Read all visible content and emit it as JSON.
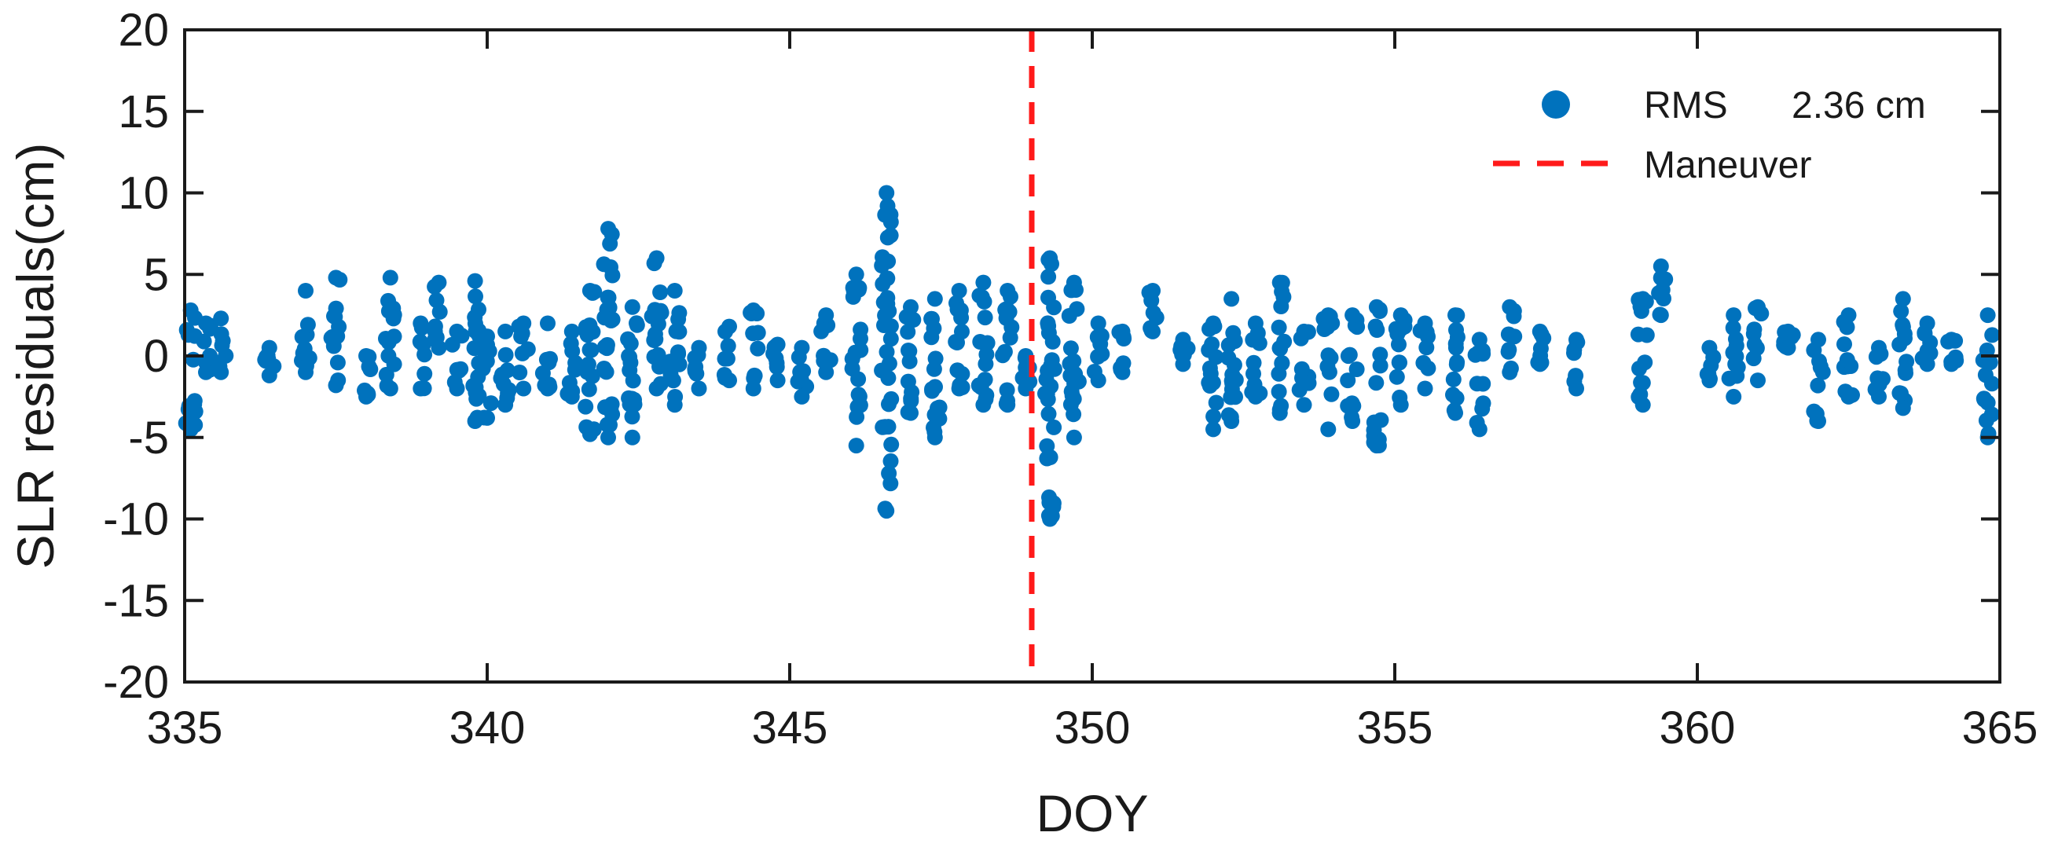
{
  "chart_data": {
    "type": "scatter",
    "xlabel": "DOY",
    "ylabel": "SLR residuals(cm)",
    "xlim": [
      335,
      365
    ],
    "ylim": [
      -20,
      20
    ],
    "xticks": [
      335,
      340,
      345,
      350,
      355,
      360,
      365
    ],
    "yticks": [
      -20,
      -15,
      -10,
      -5,
      0,
      5,
      10,
      15,
      20
    ],
    "grid": false,
    "legend_position": "top-right",
    "colors": {
      "points": "#0072BD",
      "maneuver": "#FF1A1A",
      "axes": "#1a1a1a"
    },
    "legend": {
      "points_label": "RMS",
      "points_value": "2.36 cm",
      "line_label": "Maneuver"
    },
    "maneuver_x": 349.0,
    "clusters": [
      [
        335.1,
        2.8,
        -4.5
      ],
      [
        335.35,
        2.0,
        -1.0
      ],
      [
        335.6,
        2.3,
        -1.0
      ],
      [
        336.4,
        0.5,
        -1.2
      ],
      [
        337.0,
        4.0,
        -1.0
      ],
      [
        337.5,
        4.8,
        -1.8
      ],
      [
        338.0,
        0.0,
        -2.5
      ],
      [
        338.4,
        4.8,
        -2.0
      ],
      [
        338.9,
        2.0,
        -2.0
      ],
      [
        339.2,
        4.5,
        0.5
      ],
      [
        339.5,
        1.5,
        -2.0
      ],
      [
        339.8,
        4.6,
        -4.0
      ],
      [
        340.0,
        1.2,
        -3.8
      ],
      [
        340.3,
        1.5,
        -3.0
      ],
      [
        340.6,
        2.0,
        -2.0
      ],
      [
        341.0,
        2.0,
        -2.0
      ],
      [
        341.4,
        1.5,
        -2.5
      ],
      [
        341.7,
        4.0,
        -4.8
      ],
      [
        342.0,
        7.8,
        -5.0
      ],
      [
        342.4,
        3.0,
        -5.0
      ],
      [
        342.8,
        6.0,
        -2.0
      ],
      [
        343.1,
        4.0,
        -3.0
      ],
      [
        343.5,
        0.5,
        -2.0
      ],
      [
        344.0,
        1.8,
        -1.5
      ],
      [
        344.4,
        2.8,
        -2.0
      ],
      [
        344.8,
        0.7,
        -1.5
      ],
      [
        345.2,
        0.5,
        -2.5
      ],
      [
        345.6,
        2.5,
        -1.0
      ],
      [
        346.1,
        5.0,
        -5.5
      ],
      [
        346.6,
        10.0,
        -9.5
      ],
      [
        347.0,
        3.0,
        -3.5
      ],
      [
        347.4,
        3.5,
        -5.0
      ],
      [
        347.8,
        4.0,
        -2.0
      ],
      [
        348.2,
        4.5,
        -3.0
      ],
      [
        348.6,
        4.0,
        -3.0
      ],
      [
        348.9,
        0.0,
        -2.0
      ],
      [
        349.3,
        6.0,
        -10.0
      ],
      [
        349.7,
        4.5,
        -5.0
      ],
      [
        350.1,
        2.0,
        -1.5
      ],
      [
        350.5,
        1.5,
        -1.0
      ],
      [
        351.0,
        4.0,
        1.5
      ],
      [
        351.5,
        1.0,
        -0.5
      ],
      [
        352.0,
        2.0,
        -4.5
      ],
      [
        352.3,
        3.5,
        -4.0
      ],
      [
        352.7,
        2.0,
        -2.5
      ],
      [
        353.1,
        4.5,
        -3.5
      ],
      [
        353.5,
        1.5,
        -3.0
      ],
      [
        353.9,
        2.5,
        -4.5
      ],
      [
        354.3,
        2.5,
        -4.0
      ],
      [
        354.7,
        3.0,
        -5.5
      ],
      [
        355.1,
        2.5,
        -3.0
      ],
      [
        355.5,
        2.0,
        -2.0
      ],
      [
        356.0,
        2.5,
        -3.5
      ],
      [
        356.4,
        1.0,
        -4.5
      ],
      [
        356.9,
        3.0,
        -1.0
      ],
      [
        357.4,
        1.5,
        -0.5
      ],
      [
        358.0,
        1.0,
        -2.0
      ],
      [
        359.1,
        3.5,
        -3.0
      ],
      [
        359.4,
        5.5,
        2.5
      ],
      [
        360.2,
        0.5,
        -1.5
      ],
      [
        360.6,
        2.5,
        -2.5
      ],
      [
        361.0,
        3.0,
        -1.5
      ],
      [
        361.5,
        1.5,
        0.5
      ],
      [
        362.0,
        1.0,
        -4.0
      ],
      [
        362.5,
        2.5,
        -2.5
      ],
      [
        363.0,
        0.5,
        -2.5
      ],
      [
        363.4,
        3.5,
        -3.2
      ],
      [
        363.8,
        2.0,
        -0.5
      ],
      [
        364.2,
        1.0,
        -0.5
      ],
      [
        364.8,
        2.5,
        -5.0
      ]
    ]
  }
}
